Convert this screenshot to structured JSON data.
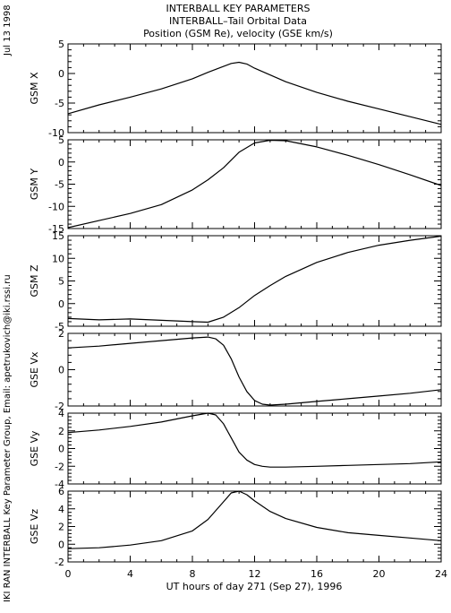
{
  "header": {
    "title_lines": [
      "INTERBALL KEY PARAMETERS",
      "INTERBALL–Tail Orbital Data",
      "Position (GSM Re), velocity (GSE km/s)"
    ],
    "date_stamp": "Jul 13 1998",
    "credit": "IKI RAN INTERBALL Key Parameter Group, Email: apetrukovich@iki.rssi.ru"
  },
  "chart_data": {
    "type": "line",
    "x_axis": {
      "label": "UT hours of day 271 (Sep 27), 1996",
      "range": [
        0,
        24
      ],
      "ticks": [
        0,
        4,
        8,
        12,
        16,
        20,
        24
      ]
    },
    "panels": [
      {
        "ylabel": "GSM X",
        "ylim": [
          -10,
          5
        ],
        "yticks": [
          -10,
          -5,
          0,
          5
        ],
        "x": [
          0,
          2,
          4,
          6,
          8,
          9,
          10,
          10.5,
          11,
          11.5,
          12,
          14,
          16,
          18,
          20,
          22,
          24
        ],
        "y": [
          -6.8,
          -5.3,
          -4.0,
          -2.6,
          -0.9,
          0.2,
          1.2,
          1.7,
          1.9,
          1.6,
          0.9,
          -1.4,
          -3.2,
          -4.7,
          -6.0,
          -7.3,
          -8.6
        ]
      },
      {
        "ylabel": "GSM Y",
        "ylim": [
          -15,
          5
        ],
        "yticks": [
          -15,
          -10,
          -5,
          0,
          5
        ],
        "x": [
          0,
          2,
          4,
          6,
          8,
          9,
          10,
          11,
          12,
          13,
          14,
          16,
          18,
          20,
          22,
          24
        ],
        "y": [
          -14.8,
          -13.2,
          -11.6,
          -9.6,
          -6.3,
          -4.0,
          -1.3,
          2.2,
          4.3,
          4.9,
          4.8,
          3.4,
          1.5,
          -0.6,
          -2.9,
          -5.3
        ]
      },
      {
        "ylabel": "GSM Z",
        "ylim": [
          -5,
          15
        ],
        "yticks": [
          -5,
          0,
          5,
          10,
          15
        ],
        "x": [
          0,
          2,
          4,
          6,
          8,
          9,
          10,
          11,
          12,
          13,
          14,
          16,
          18,
          20,
          22,
          24
        ],
        "y": [
          -3.3,
          -3.6,
          -3.4,
          -3.7,
          -4.0,
          -4.1,
          -3.0,
          -0.9,
          1.8,
          4.0,
          6.0,
          9.1,
          11.3,
          12.9,
          14.0,
          14.9
        ]
      },
      {
        "ylabel": "GSE Vx",
        "ylim": [
          -2,
          2
        ],
        "yticks": [
          -2,
          0,
          2
        ],
        "x": [
          0,
          2,
          4,
          6,
          8,
          9,
          9.5,
          10,
          10.5,
          11,
          11.5,
          12,
          12.5,
          13,
          14,
          16,
          18,
          20,
          22,
          24
        ],
        "y": [
          1.2,
          1.3,
          1.45,
          1.6,
          1.75,
          1.8,
          1.7,
          1.35,
          0.6,
          -0.4,
          -1.2,
          -1.7,
          -1.9,
          -1.95,
          -1.9,
          -1.75,
          -1.6,
          -1.45,
          -1.3,
          -1.1
        ]
      },
      {
        "ylabel": "GSE Vy",
        "ylim": [
          -4,
          4
        ],
        "yticks": [
          -4,
          -2,
          0,
          2,
          4
        ],
        "x": [
          0,
          2,
          4,
          6,
          8,
          9,
          9.5,
          10,
          10.5,
          11,
          11.5,
          12,
          12.5,
          13,
          14,
          16,
          18,
          20,
          22,
          24
        ],
        "y": [
          1.8,
          2.1,
          2.5,
          3.0,
          3.7,
          4.0,
          3.8,
          2.8,
          1.2,
          -0.4,
          -1.3,
          -1.8,
          -2.0,
          -2.1,
          -2.1,
          -2.0,
          -1.9,
          -1.8,
          -1.7,
          -1.5
        ]
      },
      {
        "ylabel": "GSE Vz",
        "ylim": [
          -2,
          6
        ],
        "yticks": [
          -2,
          0,
          2,
          4,
          6
        ],
        "x": [
          0,
          2,
          4,
          6,
          8,
          9,
          10,
          10.5,
          11,
          11.5,
          12,
          13,
          14,
          16,
          18,
          20,
          22,
          24
        ],
        "y": [
          -0.5,
          -0.4,
          -0.1,
          0.4,
          1.5,
          2.8,
          4.8,
          5.8,
          6.0,
          5.6,
          4.9,
          3.7,
          2.9,
          1.9,
          1.3,
          1.0,
          0.7,
          0.4
        ]
      }
    ],
    "grid": false,
    "line_color": "#000000"
  }
}
